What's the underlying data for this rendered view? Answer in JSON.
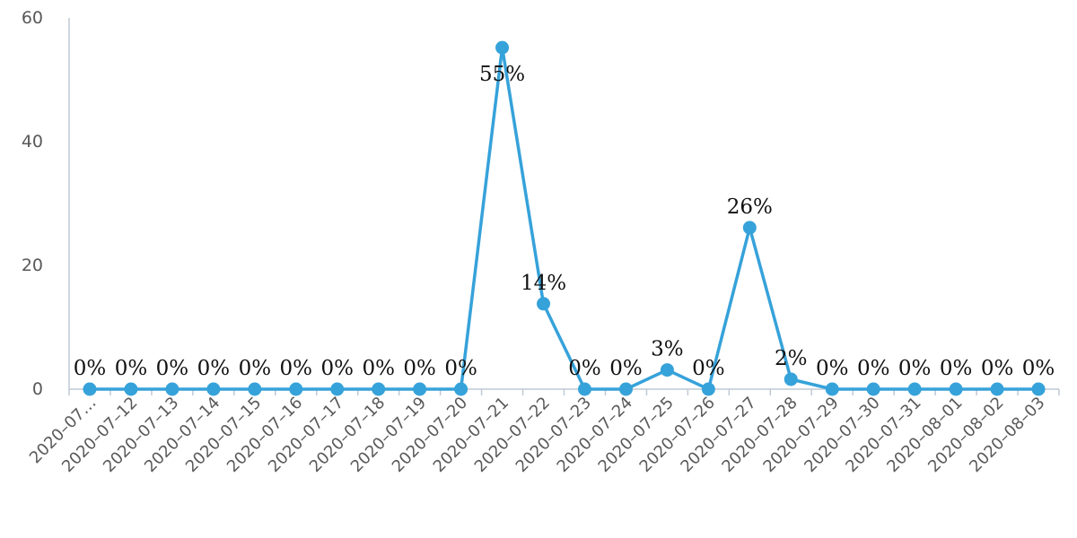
{
  "chart_data": {
    "type": "line",
    "title": "",
    "xlabel": "",
    "ylabel": "",
    "ylim": [
      0,
      60
    ],
    "yticks": [
      0,
      20,
      40,
      60
    ],
    "grid": false,
    "legend": "none",
    "color": "#36A2DA",
    "categories": [
      "2020–07…",
      "2020–07–12",
      "2020–07–13",
      "2020–07–14",
      "2020–07–15",
      "2020–07–16",
      "2020–07–17",
      "2020–07–18",
      "2020–07–19",
      "2020–07–20",
      "2020–07–21",
      "2020–07–22",
      "2020–07–23",
      "2020–07–24",
      "2020–07–25",
      "2020–07–26",
      "2020–07–27",
      "2020–07–28",
      "2020–07–29",
      "2020–07–30",
      "2020–07–31",
      "2020–08–01",
      "2020–08–02",
      "2020–08–03"
    ],
    "series": [
      {
        "values": [
          0,
          0,
          0,
          0,
          0,
          0,
          0,
          0,
          0,
          0,
          55.2,
          13.8,
          0,
          0,
          3.1,
          0,
          26.1,
          1.6,
          0,
          0,
          0,
          0,
          0,
          0
        ],
        "data_labels": [
          "0%",
          "0%",
          "0%",
          "0%",
          "0%",
          "0%",
          "0%",
          "0%",
          "0%",
          "0%",
          "55%",
          "14%",
          "0%",
          "0%",
          "3%",
          "0%",
          "26%",
          "2%",
          "0%",
          "0%",
          "0%",
          "0%",
          "0%",
          "0%"
        ]
      }
    ]
  }
}
